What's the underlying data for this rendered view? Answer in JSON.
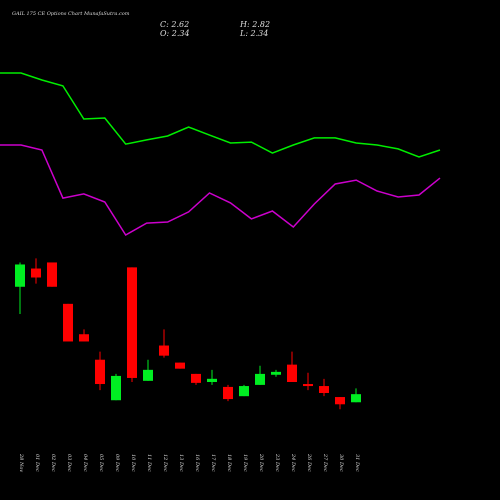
{
  "chart_data": {
    "type": "candlestick",
    "title": "GAIL  175 CE Options  Chart MunafaSutra.com",
    "info": [
      "C: 2.62",
      "H: 2.82",
      "O: 2.34",
      "L: 2.34"
    ],
    "categories": [
      "28 Nov",
      "01 Dec",
      "02 Dec",
      "03 Dec",
      "04 Dec",
      "05 Dec",
      "09 Dec",
      "10 Dec",
      "11 Dec",
      "12 Dec",
      "13 Dec",
      "16 Dec",
      "17 Dec",
      "18 Dec",
      "19 Dec",
      "20 Dec",
      "23 Dec",
      "24 Dec",
      "26 Dec",
      "27 Dec",
      "30 Dec",
      "31 Dec"
    ],
    "open": [
      6.33,
      6.96,
      7.17,
      5.74,
      4.69,
      3.81,
      2.41,
      7.0,
      3.08,
      4.3,
      3.71,
      3.32,
      3.04,
      2.87,
      2.55,
      2.94,
      3.29,
      3.64,
      2.97,
      2.9,
      2.52,
      2.34
    ],
    "high": [
      7.17,
      7.31,
      7.17,
      5.74,
      4.86,
      4.09,
      3.32,
      7.0,
      3.81,
      4.86,
      3.71,
      3.32,
      3.46,
      2.94,
      2.94,
      3.6,
      3.46,
      4.09,
      3.36,
      3.15,
      2.52,
      2.82
    ],
    "low": [
      5.39,
      6.44,
      6.33,
      4.44,
      4.44,
      2.76,
      2.41,
      3.04,
      3.08,
      3.88,
      3.5,
      2.94,
      2.94,
      2.38,
      2.55,
      2.94,
      3.22,
      3.04,
      2.76,
      2.55,
      2.1,
      2.34
    ],
    "close": [
      7.1,
      6.65,
      6.33,
      4.44,
      4.44,
      2.97,
      3.25,
      3.18,
      3.46,
      3.95,
      3.5,
      3.01,
      3.15,
      2.45,
      2.9,
      3.32,
      3.39,
      3.04,
      2.9,
      2.66,
      2.27,
      2.62
    ],
    "up_color": "#00ee22",
    "down_color": "#ff0000",
    "ylim": [
      1.9,
      7.6
    ],
    "series": [
      {
        "color": "#00ee00",
        "axis": "y2",
        "values": [
          92.8,
          92.8,
          88.9,
          85.6,
          67.2,
          67.8,
          53.3,
          55.6,
          57.8,
          62.8,
          58.3,
          53.9,
          54.4,
          48.3,
          52.8,
          56.7,
          56.7,
          53.9,
          52.8,
          50.6,
          46.1,
          50.0
        ]
      },
      {
        "color": "#cc00cc",
        "axis": "y2",
        "values": [
          52.8,
          52.8,
          50,
          23.3,
          25.6,
          21.1,
          2.8,
          9.4,
          10,
          15.6,
          26.1,
          20.6,
          11.7,
          16.1,
          7.2,
          20,
          31.1,
          33.3,
          27.2,
          23.9,
          25,
          34.4
        ]
      }
    ],
    "y2lim": [
      0,
      100
    ]
  }
}
